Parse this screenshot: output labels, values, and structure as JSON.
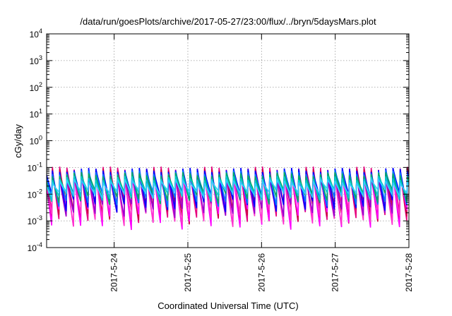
{
  "chart_data": {
    "type": "line",
    "title": "/data/run/goesPlots/archive/2017-05-27/23:00/flux/../bryn/5daysMars.plot",
    "xlabel": "Coordinated Universal Time (UTC)",
    "ylabel": "cGy/day",
    "yscale": "log",
    "ylim": [
      0.0001,
      10000
    ],
    "xlim": [
      "2017-05-23T02:00",
      "2017-05-28T00:00"
    ],
    "grid": true,
    "y_ticks": [
      {
        "base": "10",
        "exp": "-4",
        "value": 0.0001
      },
      {
        "base": "10",
        "exp": "-3",
        "value": 0.001
      },
      {
        "base": "10",
        "exp": "-2",
        "value": 0.01
      },
      {
        "base": "10",
        "exp": "-1",
        "value": 0.1
      },
      {
        "base": "10",
        "exp": "0",
        "value": 1
      },
      {
        "base": "10",
        "exp": "1",
        "value": 10
      },
      {
        "base": "10",
        "exp": "2",
        "value": 100
      },
      {
        "base": "10",
        "exp": "3",
        "value": 1000
      },
      {
        "base": "10",
        "exp": "4",
        "value": 10000
      }
    ],
    "x_ticks": [
      "2017-5-24",
      "2017-5-25",
      "2017-5-26",
      "2017-5-27",
      "2017-5-28"
    ],
    "x_tick_dates": [
      "2017-05-24T00:00",
      "2017-05-25T00:00",
      "2017-05-26T00:00",
      "2017-05-27T00:00",
      "2017-05-28T00:00"
    ],
    "cycle_hours": 2.36,
    "series": [
      {
        "color": "#e6007e",
        "peak": 0.09,
        "trough": 0.0013
      },
      {
        "color": "#cc0044",
        "peak": 0.075,
        "trough": 0.0011
      },
      {
        "color": "#ff00ff",
        "peak": 0.06,
        "trough": 0.0007
      },
      {
        "color": "#ff33cc",
        "peak": 0.05,
        "trough": 0.0009
      },
      {
        "color": "#9900cc",
        "peak": 0.045,
        "trough": 0.0019
      },
      {
        "color": "#0000ff",
        "peak": 0.08,
        "trough": 0.003
      },
      {
        "color": "#0077ff",
        "peak": 0.065,
        "trough": 0.0045
      },
      {
        "color": "#00aa66",
        "peak": 0.055,
        "trough": 0.0055
      },
      {
        "color": "#00cccc",
        "peak": 0.04,
        "trough": 0.007
      },
      {
        "color": "#33ccff",
        "peak": 0.03,
        "trough": 0.009
      }
    ]
  }
}
